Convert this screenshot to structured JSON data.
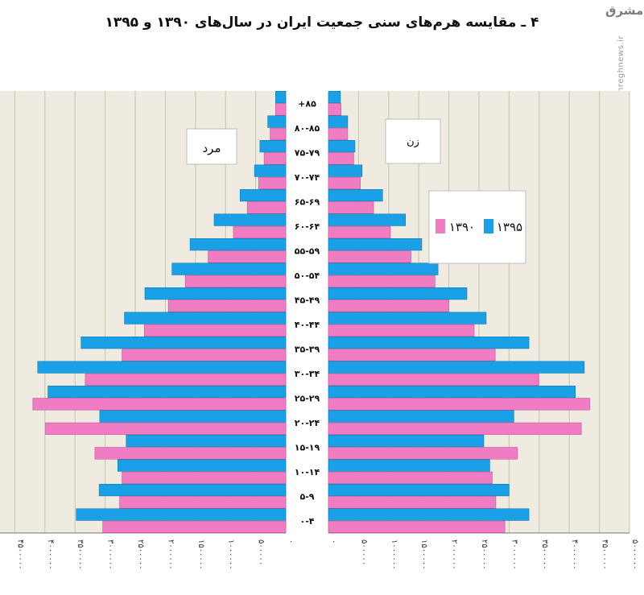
{
  "title": "۴ ـ مقایسه هرم‌های سنی جمعیت ایران در سال‌های ۱۳۹۰ و ۱۳۹۵",
  "watermark": {
    "logo": "مشرق",
    "url": "mashreghnews.ir"
  },
  "colors": {
    "y1390": "#f07cc4",
    "y1395": "#19a0e6",
    "panel": "#efebe0",
    "grid": "#c9c2b0"
  },
  "chart_data": {
    "type": "bar",
    "orientation": "horizontal-population-pyramid",
    "categories": [
      "۰-۴",
      "۵-۹",
      "۱۰-۱۴",
      "۱۵-۱۹",
      "۲۰-۲۴",
      "۲۵-۲۹",
      "۳۰-۳۴",
      "۳۵-۳۹",
      "۴۰-۴۴",
      "۴۵-۴۹",
      "۵۰-۵۴",
      "۵۵-۵۹",
      "۶۰-۶۴",
      "۶۵-۶۹",
      "۷۰-۷۴",
      "۷۵-۷۹",
      "۸۰-۸۵",
      "+۸۵"
    ],
    "series": [
      {
        "name": "۱۳۹۵",
        "color": "#19a0e6",
        "male": [
          3480000,
          3100000,
          2790000,
          2650000,
          3090000,
          3950000,
          4120000,
          3400000,
          2680000,
          2340000,
          1890000,
          1590000,
          1190000,
          760000,
          520000,
          430000,
          300000,
          170000
        ],
        "female": [
          3330000,
          3000000,
          2680000,
          2580000,
          3080000,
          4100000,
          4250000,
          3330000,
          2620000,
          2300000,
          1820000,
          1550000,
          1280000,
          900000,
          560000,
          440000,
          320000,
          200000
        ]
      },
      {
        "name": "۱۳۹۰",
        "color": "#f07cc4",
        "male": [
          3040000,
          2760000,
          2720000,
          3170000,
          3990000,
          4200000,
          3330000,
          2720000,
          2350000,
          1950000,
          1670000,
          1290000,
          870000,
          640000,
          450000,
          360000,
          260000,
          170000
        ],
        "female": [
          2930000,
          2780000,
          2720000,
          3140000,
          4200000,
          4340000,
          3490000,
          2770000,
          2420000,
          2000000,
          1770000,
          1370000,
          1030000,
          750000,
          530000,
          420000,
          320000,
          210000
        ]
      }
    ],
    "xlim": [
      0,
      5000000
    ],
    "xticks": [
      0,
      500000,
      1000000,
      1500000,
      2000000,
      2500000,
      3000000,
      3500000,
      4000000,
      4500000,
      5000000
    ],
    "xtick_labels": [
      "۰",
      "۵۰۰۰۰۰",
      "۱۰۰۰۰۰۰",
      "۱۵۰۰۰۰۰",
      "۲۰۰۰۰۰۰",
      "۲۵۰۰۰۰۰",
      "۳۰۰۰۰۰۰",
      "۳۵۰۰۰۰۰",
      "۴۰۰۰۰۰۰",
      "۴۵۰۰۰۰۰",
      "۵۰۰۰۰۰۰"
    ],
    "panel_labels": {
      "male": "مرد",
      "female": "زن"
    },
    "legend": {
      "items": [
        "۱۳۹۵",
        "۱۳۹۰"
      ],
      "placement": "upper-right of female panel"
    },
    "grid": true
  }
}
